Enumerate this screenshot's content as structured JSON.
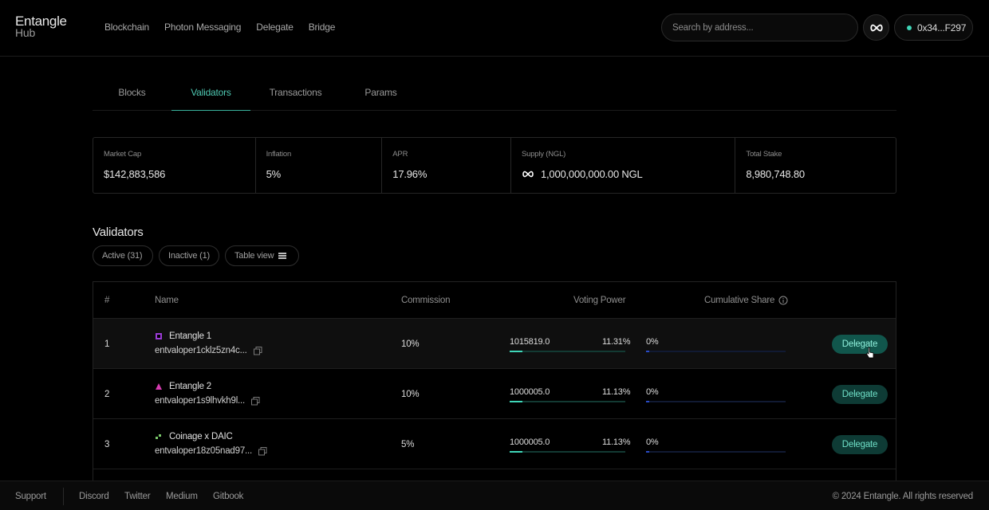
{
  "header": {
    "logo_line1": "Entangle",
    "logo_line2": "Hub",
    "nav": [
      "Blockchain",
      "Photon Messaging",
      "Delegate",
      "Bridge"
    ],
    "search_placeholder": "Search by address...",
    "wallet": "0x34...F297",
    "accent": "#3fd6b8"
  },
  "tabs": [
    "Blocks",
    "Validators",
    "Transactions",
    "Params"
  ],
  "active_tab": "Validators",
  "stats": [
    {
      "label": "Market Cap",
      "value": "$142,883,586"
    },
    {
      "label": "Inflation",
      "value": "5%"
    },
    {
      "label": "APR",
      "value": "17.96%"
    },
    {
      "label": "Supply (NGL)",
      "value": "1,000,000,000.00 NGL",
      "icon": "infinity-icon"
    },
    {
      "label": "Total Stake",
      "value": "8,980,748.80"
    }
  ],
  "validators": {
    "title": "Validators",
    "filters": [
      "Active (31)",
      "Inactive (1)",
      "Table view"
    ],
    "columns": [
      "#",
      "Name",
      "Commission",
      "Voting Power",
      "Cumulative Share"
    ],
    "delegate_label": "Delegate",
    "rows": [
      {
        "index": "1",
        "name": "Entangle 1",
        "address": "entvaloper1cklz5zn4c...",
        "commission": "10%",
        "voting_power": "1015819.0",
        "voting_pct": "11.31%",
        "voting_fraction": 0.1131,
        "cumulative": "0%",
        "cumulative_fraction": 0.02,
        "avatar_color": "#9b3bd6"
      },
      {
        "index": "2",
        "name": "Entangle 2",
        "address": "entvaloper1s9lhvkh9l...",
        "commission": "10%",
        "voting_power": "1000005.0",
        "voting_pct": "11.13%",
        "voting_fraction": 0.1113,
        "cumulative": "0%",
        "cumulative_fraction": 0.02,
        "avatar_color": "#d63bb0"
      },
      {
        "index": "3",
        "name": "Coinage x DAIC",
        "address": "entvaloper18z05nad97...",
        "commission": "5%",
        "voting_power": "1000005.0",
        "voting_pct": "11.13%",
        "voting_fraction": 0.1113,
        "cumulative": "0%",
        "cumulative_fraction": 0.02,
        "avatar_color": "#7ac96a"
      }
    ]
  },
  "footer": {
    "links": [
      "Support",
      "Discord",
      "Twitter",
      "Medium",
      "Gitbook"
    ],
    "copyright": "© 2024 Entangle. All rights reserved"
  }
}
